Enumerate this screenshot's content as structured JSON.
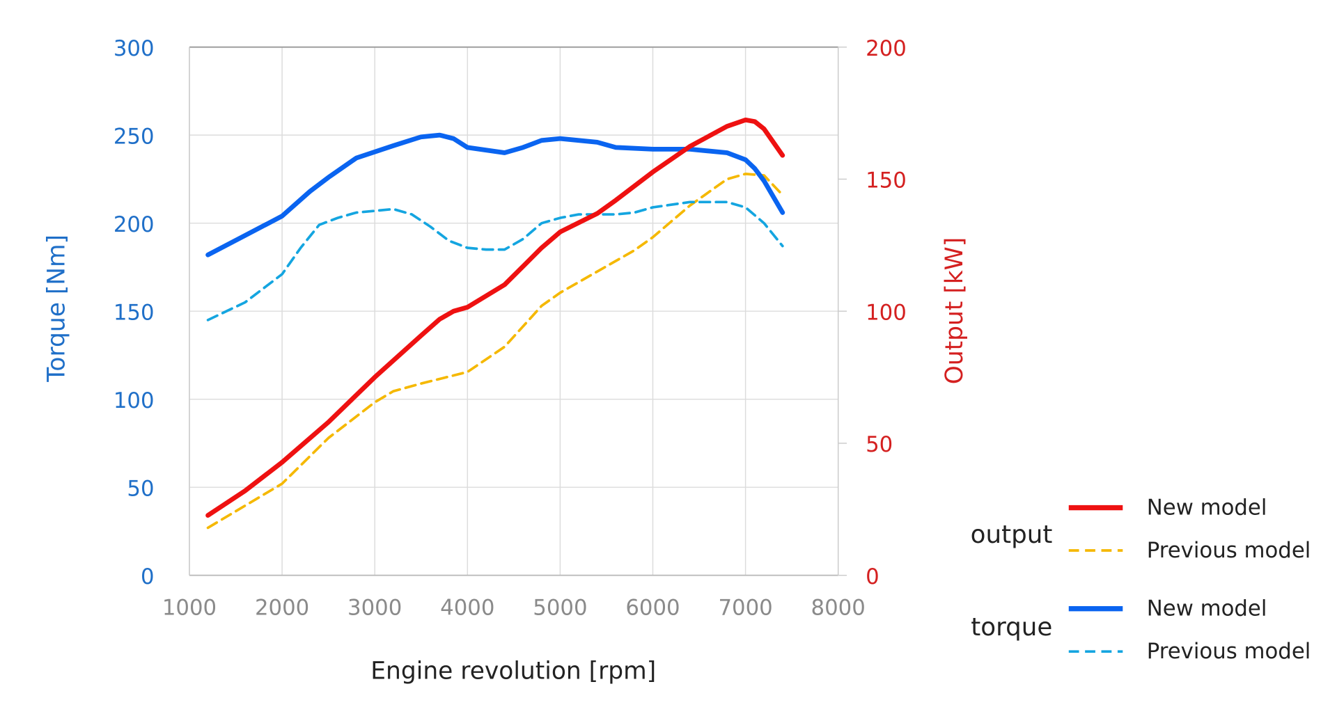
{
  "chart_data": {
    "type": "line",
    "xlabel": "Engine revolution [rpm]",
    "xlim": [
      1000,
      8000
    ],
    "xticks": [
      "1000",
      "2000",
      "3000",
      "4000",
      "5000",
      "6000",
      "7000",
      "8000"
    ],
    "y_left": {
      "label": "Torque [Nm]",
      "lim": [
        0,
        300
      ],
      "ticks": [
        "0",
        "50",
        "100",
        "150",
        "200",
        "250",
        "300"
      ],
      "color": "#1F6FC8"
    },
    "y_right": {
      "label": "Output [kW]",
      "lim": [
        0,
        200
      ],
      "ticks": [
        "0",
        "50",
        "100",
        "150",
        "200"
      ],
      "color": "#D42020"
    },
    "grid": true,
    "legend_position": "bottom-right",
    "legend_groups": [
      {
        "label": "output",
        "entries": [
          "New model",
          "Previous model"
        ]
      },
      {
        "label": "torque",
        "entries": [
          "New model",
          "Previous model"
        ]
      }
    ],
    "series": [
      {
        "group": "output",
        "name": "New model",
        "axis": "right",
        "color": "#EE1111",
        "style": "solid",
        "x": [
          1200,
          1600,
          2000,
          2500,
          3000,
          3500,
          3700,
          3850,
          4000,
          4400,
          4600,
          4800,
          5000,
          5400,
          5600,
          6000,
          6400,
          6800,
          7000,
          7100,
          7200,
          7400
        ],
        "y": [
          22.7,
          32,
          42.8,
          58,
          75,
          90.8,
          97,
          100,
          101.5,
          110,
          117,
          124,
          130,
          137,
          142,
          152.7,
          162.4,
          170,
          172.4,
          171.8,
          169,
          159
        ]
      },
      {
        "group": "output",
        "name": "Previous model",
        "axis": "right",
        "color": "#F5B800",
        "style": "dashed",
        "x": [
          1200,
          2000,
          2500,
          3000,
          3200,
          3500,
          4000,
          4400,
          4800,
          5000,
          5400,
          5800,
          6000,
          6400,
          6800,
          7000,
          7200,
          7400
        ],
        "y": [
          18,
          34.7,
          52,
          65.5,
          69.7,
          72.6,
          77,
          86.5,
          102,
          107,
          115,
          123,
          128,
          140,
          150,
          152,
          151.4,
          144
        ]
      },
      {
        "group": "torque",
        "name": "New model",
        "axis": "left",
        "color": "#0A64F0",
        "style": "solid",
        "x": [
          1200,
          1600,
          2000,
          2300,
          2500,
          2800,
          3200,
          3500,
          3700,
          3850,
          4000,
          4400,
          4600,
          4800,
          5000,
          5400,
          5600,
          6000,
          6400,
          6800,
          7000,
          7100,
          7200,
          7400
        ],
        "y": [
          182,
          193,
          204,
          218,
          226,
          237,
          244,
          249,
          250,
          248,
          243,
          240,
          243,
          247,
          248,
          246,
          243,
          242,
          242,
          240,
          236,
          231,
          224,
          206
        ]
      },
      {
        "group": "torque",
        "name": "Previous model",
        "axis": "left",
        "color": "#14A5E0",
        "style": "dashed",
        "x": [
          1200,
          1600,
          2000,
          2200,
          2400,
          2600,
          2800,
          3000,
          3200,
          3400,
          3600,
          3800,
          4000,
          4200,
          4400,
          4600,
          4800,
          5000,
          5200,
          5600,
          5800,
          6000,
          6400,
          6800,
          7000,
          7200,
          7400
        ],
        "y": [
          145,
          155,
          171,
          186,
          199,
          203,
          206,
          207,
          208,
          205,
          198,
          190,
          186,
          185,
          185,
          191,
          200,
          203,
          205,
          205,
          206,
          209,
          212,
          212,
          209,
          200,
          187
        ]
      }
    ]
  }
}
